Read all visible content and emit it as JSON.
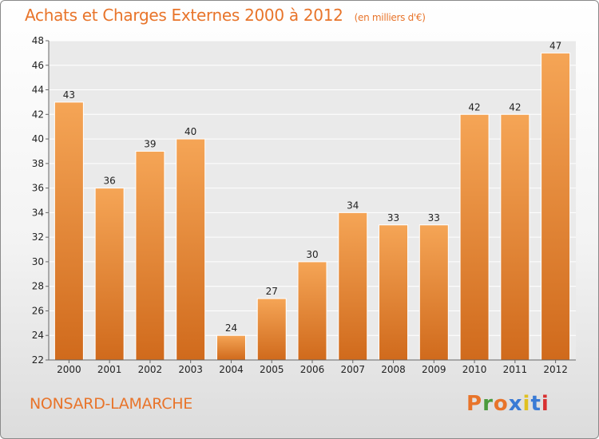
{
  "header": {
    "title": "Achats et Charges Externes 2000 à 2012",
    "unit": "(en milliers d'€)"
  },
  "footer": {
    "location": "NONSARD-LAMARCHE",
    "logo_text": "Proxiti",
    "logo_colors": [
      "#e8742a",
      "#4a9a3c",
      "#e8742a",
      "#3a7bd5",
      "#e0c020",
      "#3a7bd5",
      "#d83030"
    ]
  },
  "colors": {
    "accent": "#e8742a",
    "bar_light": "#f5a556",
    "bar_dark": "#d06a1c"
  },
  "chart_data": {
    "type": "bar",
    "title": "Achats et Charges Externes 2000 à 2012",
    "subtitle": "(en milliers d'€)",
    "categories": [
      "2000",
      "2001",
      "2002",
      "2003",
      "2004",
      "2005",
      "2006",
      "2007",
      "2008",
      "2009",
      "2010",
      "2011",
      "2012"
    ],
    "values": [
      43,
      36,
      39,
      40,
      24,
      27,
      30,
      34,
      33,
      33,
      42,
      42,
      47
    ],
    "ylim": [
      22,
      48
    ],
    "yticks": [
      22,
      24,
      26,
      28,
      30,
      32,
      34,
      36,
      38,
      40,
      42,
      44,
      46,
      48
    ],
    "grid": true
  }
}
